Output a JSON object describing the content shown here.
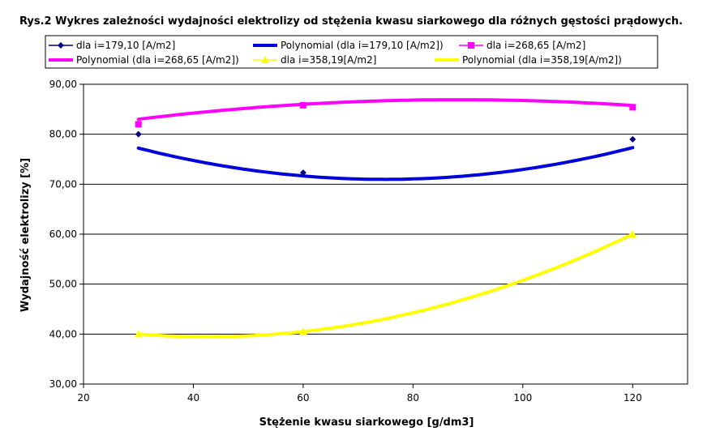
{
  "chart_data": {
    "type": "scatter",
    "title": "Rys.2 Wykres zależności wydajności elektrolizy od stężenia kwasu siarkowego dla różnych gęstości prądowych.",
    "xlabel": "Stężenie kwasu siarkowego [g/dm3]",
    "ylabel": "Wydajność elektrolizy [%]",
    "xlim": [
      20,
      130
    ],
    "ylim": [
      30,
      90
    ],
    "x_ticks": [
      "20",
      "40",
      "60",
      "80",
      "100",
      "120"
    ],
    "y_ticks": [
      "30,00",
      "40,00",
      "50,00",
      "60,00",
      "70,00",
      "80,00",
      "90,00"
    ],
    "grid": "horizontal",
    "legend_position": "top",
    "series": [
      {
        "name": "dla i=179,10 [A/m2]",
        "kind": "points",
        "marker": "diamond",
        "color": "#000080",
        "x": [
          30,
          60,
          120
        ],
        "y": [
          80.0,
          72.3,
          79.0
        ]
      },
      {
        "name": "Polynomial (dla i=179,10 [A/m2])",
        "kind": "trend",
        "color": "#0000DD",
        "coeffs": [
          0.003113,
          -0.46589,
          88.4
        ],
        "x_range": [
          30,
          120
        ]
      },
      {
        "name": "dla i=268,65 [A/m2]",
        "kind": "points",
        "marker": "square",
        "color": "#FF00FF",
        "x": [
          30,
          60,
          120
        ],
        "y": [
          82.0,
          85.8,
          85.4
        ]
      },
      {
        "name": "Polynomial (dla i=268,65 [A/m2])",
        "kind": "trend",
        "color": "#FF00FF",
        "coeffs": [
          -0.001152,
          0.20333,
          77.9367
        ],
        "x_range": [
          30,
          120
        ]
      },
      {
        "name": "dla i=358,19[A/m2]",
        "kind": "points",
        "marker": "triangle",
        "color": "#FFFF00",
        "x": [
          30,
          60,
          120
        ],
        "y": [
          40.0,
          40.5,
          60.0
        ]
      },
      {
        "name": "Polynomial (dla i=358,19[A/m2])",
        "kind": "trend",
        "color": "#FFFF00",
        "coeffs": [
          0.003426,
          -0.29167,
          45.667
        ],
        "x_range": [
          30,
          120
        ]
      }
    ]
  }
}
